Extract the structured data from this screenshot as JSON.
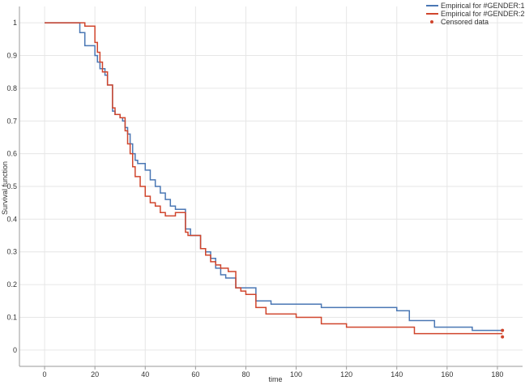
{
  "chart_data": {
    "type": "line",
    "step": true,
    "title": "",
    "xlabel": "time",
    "ylabel": "Survival function",
    "xlim": [
      -10,
      190
    ],
    "ylim": [
      -0.05,
      1.05
    ],
    "xticks": [
      0,
      20,
      40,
      60,
      80,
      100,
      120,
      140,
      160,
      180
    ],
    "yticks": [
      0,
      0.1,
      0.2,
      0.3,
      0.4,
      0.5,
      0.6,
      0.7,
      0.8,
      0.9,
      1
    ],
    "grid": true,
    "legend_position": "top-right",
    "legend": [
      "Empirical for #GENDER:1",
      "Empirical for #GENDER:2",
      "Censored data"
    ],
    "series": [
      {
        "name": "Empirical for #GENDER:1",
        "color": "#4a77b4",
        "x": [
          0,
          14,
          16,
          20,
          21,
          22,
          24,
          25,
          27,
          28,
          30,
          31,
          32,
          33,
          34,
          35,
          36,
          37,
          40,
          42,
          44,
          46,
          48,
          50,
          52,
          56,
          58,
          62,
          64,
          66,
          68,
          70,
          72,
          76,
          84,
          90,
          95,
          110,
          140,
          145,
          155,
          170,
          182
        ],
        "y": [
          1,
          0.97,
          0.93,
          0.9,
          0.88,
          0.86,
          0.84,
          0.81,
          0.73,
          0.72,
          0.71,
          0.7,
          0.68,
          0.66,
          0.63,
          0.6,
          0.58,
          0.57,
          0.55,
          0.52,
          0.5,
          0.48,
          0.46,
          0.44,
          0.43,
          0.37,
          0.35,
          0.31,
          0.3,
          0.28,
          0.25,
          0.23,
          0.22,
          0.19,
          0.15,
          0.14,
          0.14,
          0.13,
          0.12,
          0.09,
          0.07,
          0.06,
          0.06
        ]
      },
      {
        "name": "Empirical for #GENDER:2",
        "color": "#d0452c",
        "x": [
          0,
          16,
          20,
          21,
          22,
          23,
          25,
          27,
          28,
          30,
          32,
          33,
          34,
          35,
          36,
          38,
          40,
          42,
          44,
          46,
          48,
          52,
          56,
          57,
          62,
          64,
          66,
          68,
          70,
          73,
          76,
          78,
          80,
          84,
          88,
          100,
          110,
          120,
          147,
          182
        ],
        "y": [
          1,
          0.99,
          0.94,
          0.91,
          0.88,
          0.85,
          0.81,
          0.74,
          0.72,
          0.71,
          0.67,
          0.63,
          0.6,
          0.56,
          0.53,
          0.5,
          0.47,
          0.45,
          0.44,
          0.42,
          0.41,
          0.42,
          0.36,
          0.35,
          0.31,
          0.29,
          0.27,
          0.26,
          0.25,
          0.24,
          0.19,
          0.18,
          0.17,
          0.13,
          0.11,
          0.1,
          0.08,
          0.07,
          0.05,
          0.05
        ]
      }
    ],
    "censored": [
      {
        "x": 182,
        "y": 0.06,
        "color": "#d0452c"
      },
      {
        "x": 182,
        "y": 0.04,
        "color": "#d0452c"
      }
    ]
  }
}
